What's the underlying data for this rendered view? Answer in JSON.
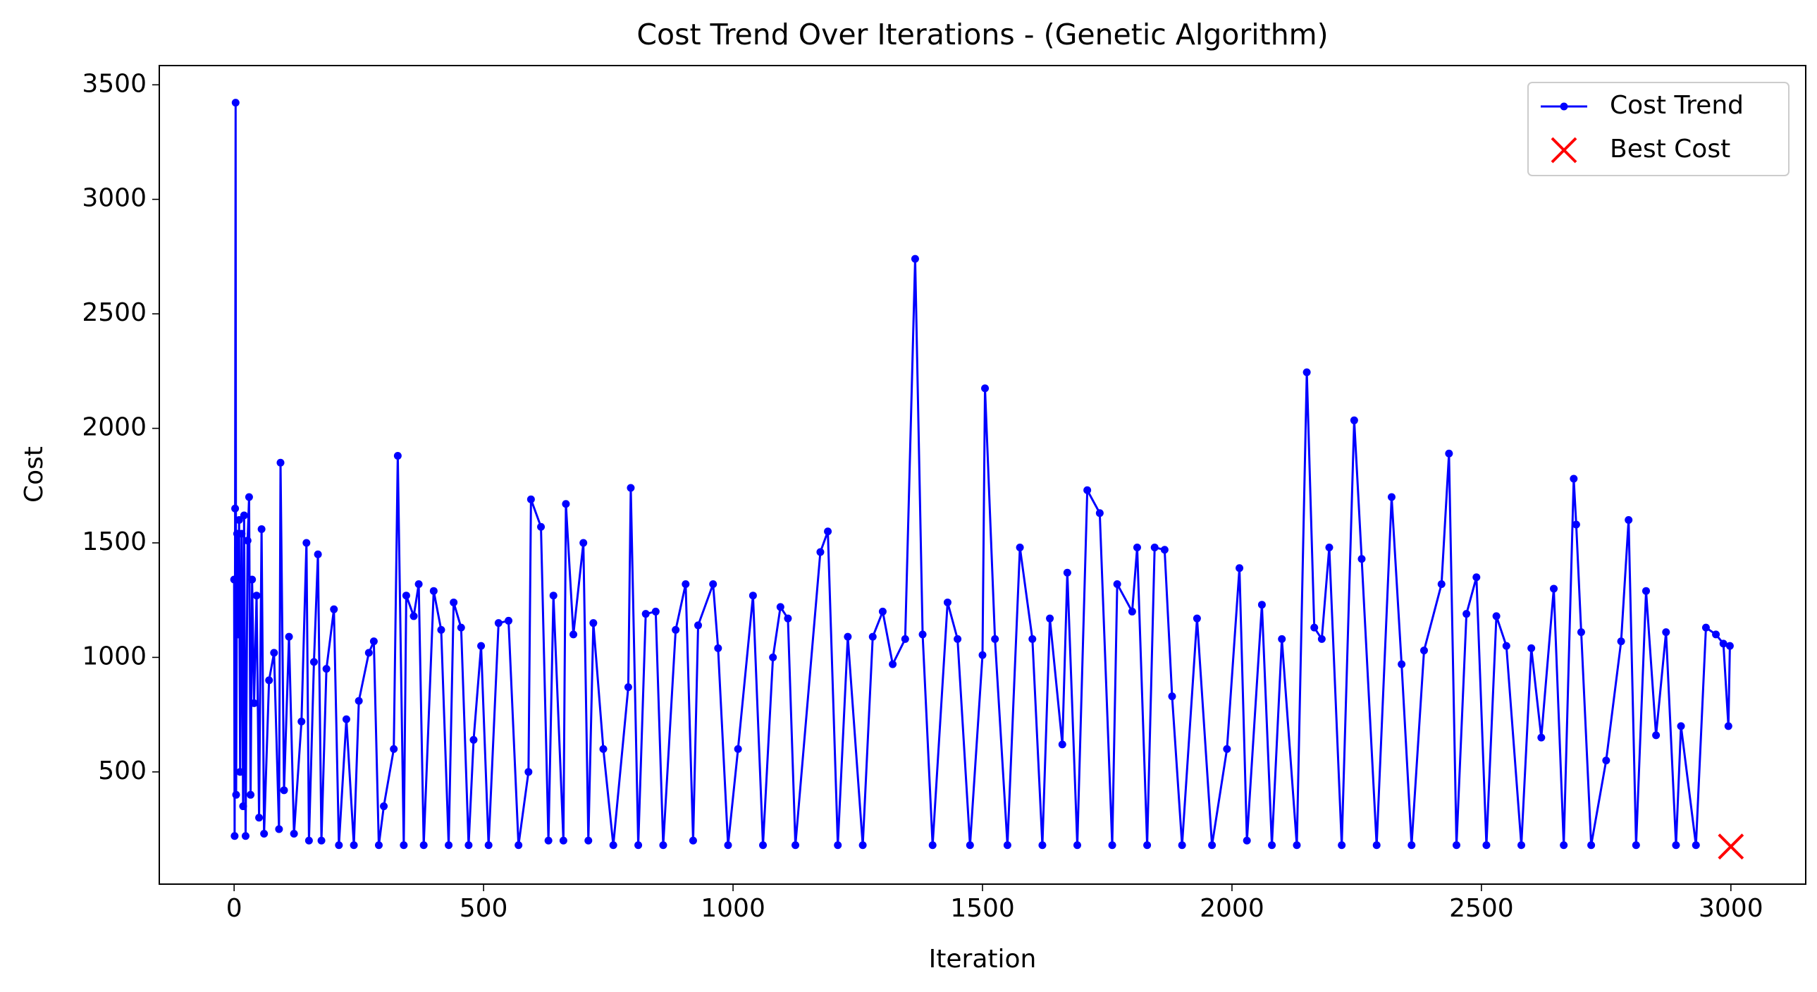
{
  "chart_data": {
    "type": "line",
    "title": "Cost Trend Over Iterations - (Genetic Algorithm)",
    "x_label": "Iteration",
    "y_label": "Cost",
    "xlim": [
      -150,
      3150
    ],
    "ylim": [
      10,
      3584
    ],
    "xticks": [
      0,
      500,
      1000,
      1500,
      2000,
      2500,
      3000
    ],
    "yticks": [
      500,
      1000,
      1500,
      2000,
      2500,
      3000,
      3500
    ],
    "legend": "upper right",
    "series": [
      {
        "name": "Cost Trend",
        "color": "blue",
        "kind": "line",
        "x": [
          0,
          1,
          2,
          3,
          4,
          6,
          8,
          10,
          12,
          15,
          18,
          20,
          23,
          27,
          30,
          33,
          36,
          40,
          45,
          50,
          55,
          60,
          70,
          80,
          90,
          93,
          100,
          110,
          120,
          135,
          145,
          150,
          160,
          168,
          175,
          185,
          200,
          210,
          225,
          240,
          250,
          270,
          280,
          290,
          300,
          320,
          328,
          340,
          345,
          360,
          370,
          380,
          400,
          415,
          430,
          440,
          455,
          470,
          480,
          495,
          510,
          530,
          550,
          570,
          590,
          595,
          615,
          630,
          640,
          660,
          665,
          680,
          700,
          710,
          720,
          740,
          760,
          790,
          795,
          810,
          825,
          845,
          860,
          885,
          905,
          920,
          930,
          960,
          970,
          990,
          1010,
          1040,
          1060,
          1080,
          1095,
          1110,
          1125,
          1175,
          1190,
          1210,
          1230,
          1260,
          1280,
          1300,
          1320,
          1345,
          1365,
          1380,
          1400,
          1430,
          1450,
          1475,
          1500,
          1505,
          1525,
          1550,
          1575,
          1600,
          1620,
          1635,
          1660,
          1670,
          1690,
          1710,
          1735,
          1760,
          1770,
          1800,
          1810,
          1830,
          1845,
          1865,
          1880,
          1900,
          1930,
          1960,
          1990,
          2015,
          2030,
          2060,
          2080,
          2100,
          2130,
          2150,
          2165,
          2180,
          2195,
          2220,
          2245,
          2260,
          2290,
          2320,
          2340,
          2360,
          2385,
          2420,
          2435,
          2450,
          2470,
          2490,
          2510,
          2530,
          2550,
          2580,
          2600,
          2620,
          2645,
          2665,
          2685,
          2690,
          2700,
          2720,
          2750,
          2780,
          2795,
          2810,
          2830,
          2850,
          2870,
          2890,
          2900,
          2930,
          2950,
          2970,
          2985,
          2995,
          2998
        ],
        "values": [
          1340,
          220,
          1650,
          3422,
          400,
          1540,
          1100,
          1600,
          500,
          1540,
          350,
          1620,
          220,
          1510,
          1700,
          400,
          1340,
          800,
          1270,
          300,
          1560,
          230,
          900,
          1020,
          250,
          1850,
          420,
          1090,
          230,
          720,
          1500,
          200,
          980,
          1450,
          200,
          950,
          1210,
          180,
          730,
          180,
          810,
          1020,
          1070,
          180,
          350,
          600,
          1880,
          180,
          1270,
          1180,
          1320,
          180,
          1290,
          1120,
          180,
          1240,
          1130,
          180,
          640,
          1050,
          180,
          1150,
          1160,
          180,
          500,
          1690,
          1570,
          200,
          1270,
          200,
          1670,
          1100,
          1500,
          200,
          1150,
          600,
          180,
          870,
          1740,
          180,
          1190,
          1200,
          180,
          1120,
          1320,
          200,
          1140,
          1320,
          1040,
          180,
          600,
          1270,
          180,
          1000,
          1220,
          1170,
          180,
          1460,
          1550,
          180,
          1090,
          180,
          1090,
          1200,
          970,
          1080,
          2740,
          1100,
          180,
          1240,
          1080,
          180,
          1010,
          2175,
          1080,
          180,
          1480,
          1080,
          180,
          1170,
          620,
          1370,
          180,
          1730,
          1630,
          180,
          1320,
          1200,
          1480,
          180,
          1480,
          1470,
          830,
          180,
          1170,
          180,
          600,
          1390,
          200,
          1230,
          180,
          1080,
          180,
          2245,
          1130,
          1080,
          1480,
          180,
          2035,
          1430,
          180,
          1700,
          970,
          180,
          1030,
          1320,
          1890,
          180,
          1190,
          1350,
          180,
          1180,
          1050,
          180,
          1040,
          650,
          1300,
          180,
          1780,
          1580,
          1110,
          180,
          550,
          1070,
          1600,
          180,
          1290,
          660,
          1110,
          180,
          700,
          180,
          1130,
          1100,
          1060,
          700,
          1050
        ]
      },
      {
        "name": "Best Cost",
        "color": "red",
        "kind": "scatter",
        "x": [
          3000
        ],
        "values": [
          174
        ]
      }
    ]
  }
}
